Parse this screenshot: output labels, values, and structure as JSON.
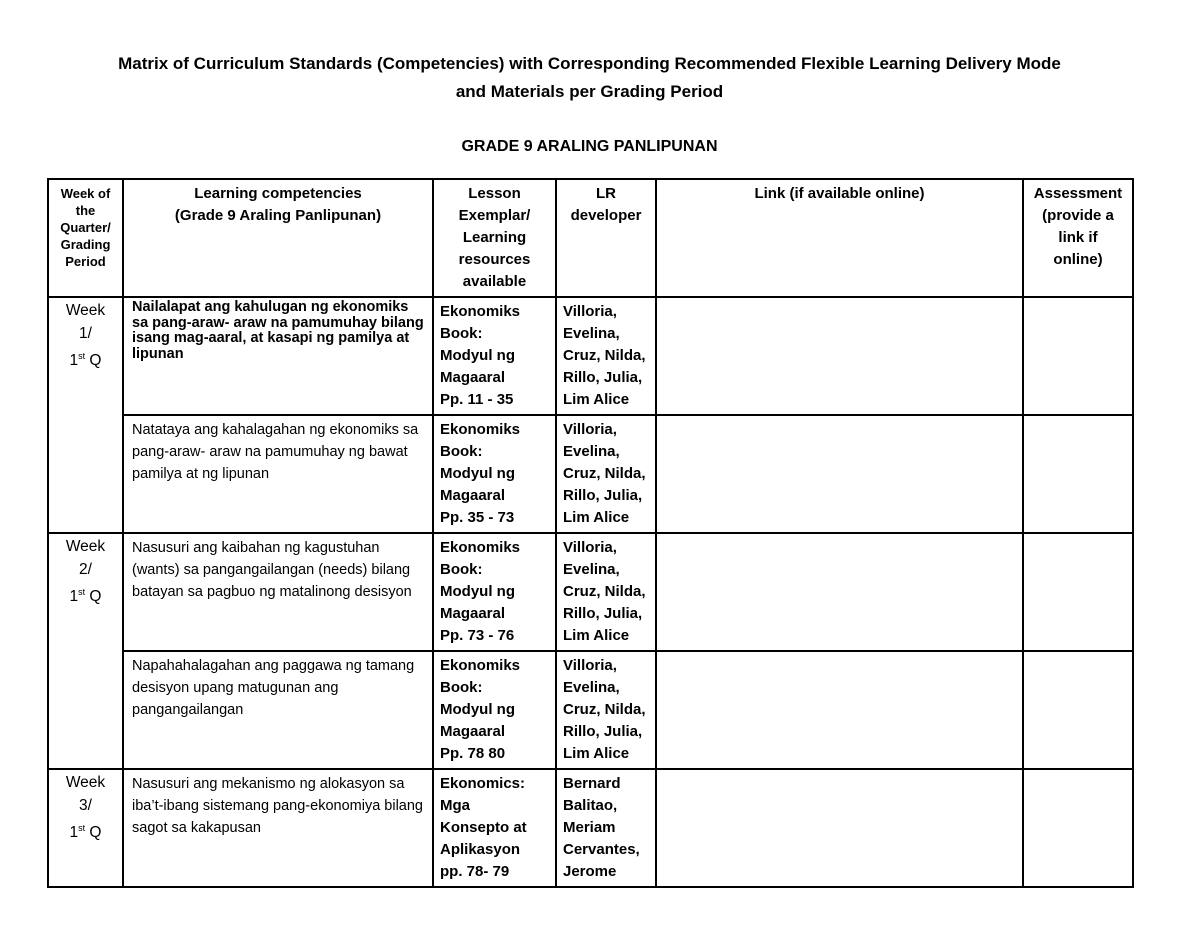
{
  "document": {
    "title_line1": "Matrix of Curriculum Standards (Competencies) with Corresponding Recommended Flexible Learning Delivery Mode",
    "title_line2": "and Materials per Grading Period",
    "grade_heading": "GRADE 9 ARALING PANLIPUNAN"
  },
  "table": {
    "headers": [
      {
        "lines": [
          "Week of",
          "the",
          "Quarter/",
          "Grading",
          "Period"
        ]
      },
      {
        "lines": [
          "Learning competencies",
          "(Grade 9 Araling Panlipunan)"
        ]
      },
      {
        "lines": [
          "Lesson",
          "Exemplar/",
          "Learning",
          "resources",
          "available"
        ]
      },
      {
        "lines": [
          "LR",
          "developer"
        ]
      },
      {
        "lines": [
          "Link (if available online)"
        ]
      },
      {
        "lines": [
          "Assessment",
          "(provide a",
          "link if",
          "online)"
        ]
      }
    ],
    "week_groups": [
      {
        "week_label": "Week",
        "week_number": "1/",
        "quarter_number": "1",
        "quarter_ordinal": "st",
        "quarter_suffix": " Q",
        "entries": [
          {
            "competency": "Nailalapat ang kahulugan ng ekonomiks sa pang-araw- araw na pamumuhay bilang isang mag-aaral, at kasapi ng pamilya at lipunan",
            "lesson_exemplar": [
              "Ekonomiks",
              "Book:",
              "Modyul ng",
              "Magaaral",
              "Pp. 11 - 35"
            ],
            "lr_developer": [
              "Villoria,",
              "Evelina,",
              "Cruz, Nilda,",
              "Rillo, Julia,",
              "Lim Alice"
            ],
            "link": "",
            "assessment": ""
          },
          {
            "competency": "Natataya ang kahalagahan ng ekonomiks sa pang-araw- araw na pamumuhay ng bawat pamilya at ng lipunan",
            "lesson_exemplar": [
              "Ekonomiks",
              "Book:",
              "Modyul ng",
              "Magaaral",
              "Pp. 35 - 73"
            ],
            "lr_developer": [
              "Villoria,",
              "Evelina,",
              "Cruz, Nilda,",
              "Rillo, Julia,",
              "Lim Alice"
            ],
            "link": "",
            "assessment": ""
          }
        ]
      },
      {
        "week_label": "Week",
        "week_number": "2/",
        "quarter_number": "1",
        "quarter_ordinal": "st",
        "quarter_suffix": " Q",
        "entries": [
          {
            "competency": "Nasusuri ang kaibahan ng kagustuhan (wants) sa pangangailangan  (needs) bilang batayan sa pagbuo ng matalinong desisyon",
            "lesson_exemplar": [
              "Ekonomiks",
              "Book:",
              "Modyul ng",
              "Magaaral",
              "Pp. 73 - 76"
            ],
            "lr_developer": [
              "Villoria,",
              "Evelina,",
              "Cruz, Nilda,",
              "Rillo, Julia,",
              "Lim Alice"
            ],
            "link": "",
            "assessment": ""
          },
          {
            "competency": "Napahahalagahan ang paggawa ng tamang desisyon upang matugunan ang pangangailangan",
            "lesson_exemplar": [
              "Ekonomiks",
              "Book:",
              "Modyul ng",
              "Magaaral",
              "Pp. 78 80"
            ],
            "lr_developer": [
              "Villoria,",
              "Evelina,",
              "Cruz, Nilda,",
              "Rillo, Julia,",
              "Lim Alice"
            ],
            "link": "",
            "assessment": ""
          }
        ]
      },
      {
        "week_label": "Week",
        "week_number": "3/",
        "quarter_number": "1",
        "quarter_ordinal": "st",
        "quarter_suffix": " Q",
        "entries": [
          {
            "competency": "Nasusuri ang mekanismo ng alokasyon sa iba’t-ibang sistemang pang-ekonomiya bilang sagot sa kakapusan",
            "lesson_exemplar": [
              "Ekonomics:",
              "Mga",
              "Konsepto at",
              "Aplikasyon",
              "pp. 78- 79"
            ],
            "lr_developer": [
              "Bernard",
              "Balitao,",
              "Meriam",
              "Cervantes,",
              "Jerome"
            ],
            "link": "",
            "assessment": ""
          }
        ]
      }
    ]
  }
}
